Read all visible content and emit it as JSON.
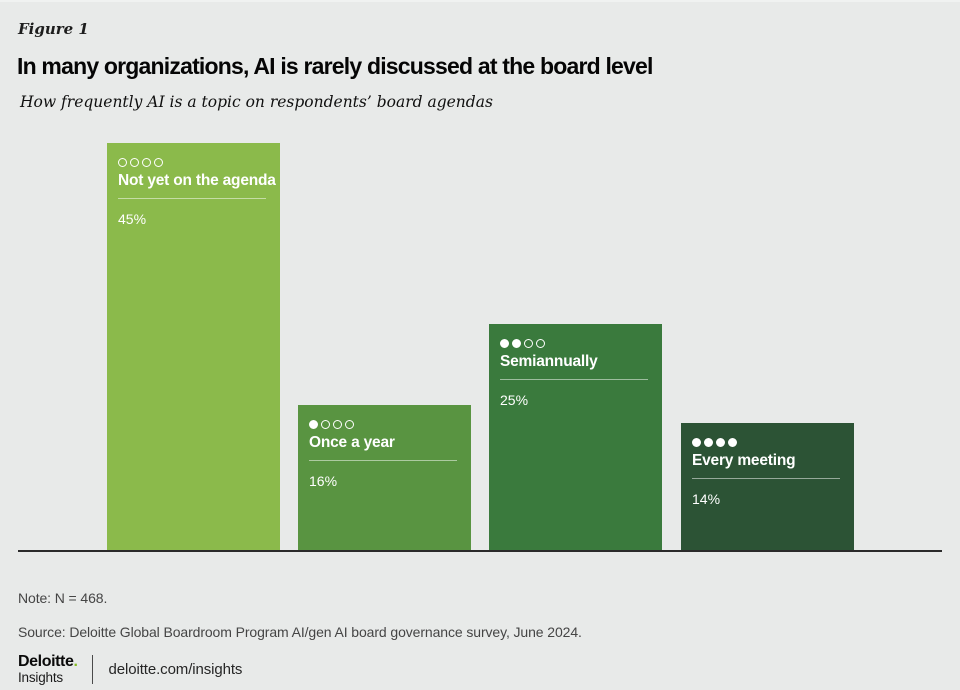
{
  "page": {
    "figure_label": "Figure 1",
    "title": "In many organizations, AI is rarely discussed at the board level",
    "subtitle": "How frequently AI is a topic on respondents’ board agendas",
    "note": "Note: N = 468.",
    "source": "Source: Deloitte Global Boardroom Program AI/gen AI board governance survey, June 2024.",
    "background_color": "#e8eae9"
  },
  "chart_data": {
    "type": "bar",
    "title": "How frequently AI is a topic on respondents’ board agendas",
    "unit": "percent",
    "categories": [
      "Not yet on the agenda",
      "Once a year",
      "Semiannually",
      "Every meeting"
    ],
    "values": [
      45,
      16,
      25,
      14
    ],
    "ylim": [
      0,
      45
    ],
    "grid": false,
    "legend": false,
    "baseline_color": "#2b2b2b",
    "bars": [
      {
        "label": "Not yet on the agenda",
        "value": 45,
        "display_value": "45%",
        "filled_dots": 0,
        "total_dots": 4,
        "color": "#8bba4b"
      },
      {
        "label": "Once a year",
        "value": 16,
        "display_value": "16%",
        "filled_dots": 1,
        "total_dots": 4,
        "color": "#599441"
      },
      {
        "label": "Semiannually",
        "value": 25,
        "display_value": "25%",
        "filled_dots": 2,
        "total_dots": 4,
        "color": "#3a7a3d"
      },
      {
        "label": "Every meeting",
        "value": 14,
        "display_value": "14%",
        "filled_dots": 4,
        "total_dots": 4,
        "color": "#2c5335"
      }
    ]
  },
  "footer": {
    "brand": "Deloitte",
    "brand_dot": ".",
    "brand_dot_color": "#86bc25",
    "brand_sub": "Insights",
    "link": "deloitte.com/insights"
  }
}
